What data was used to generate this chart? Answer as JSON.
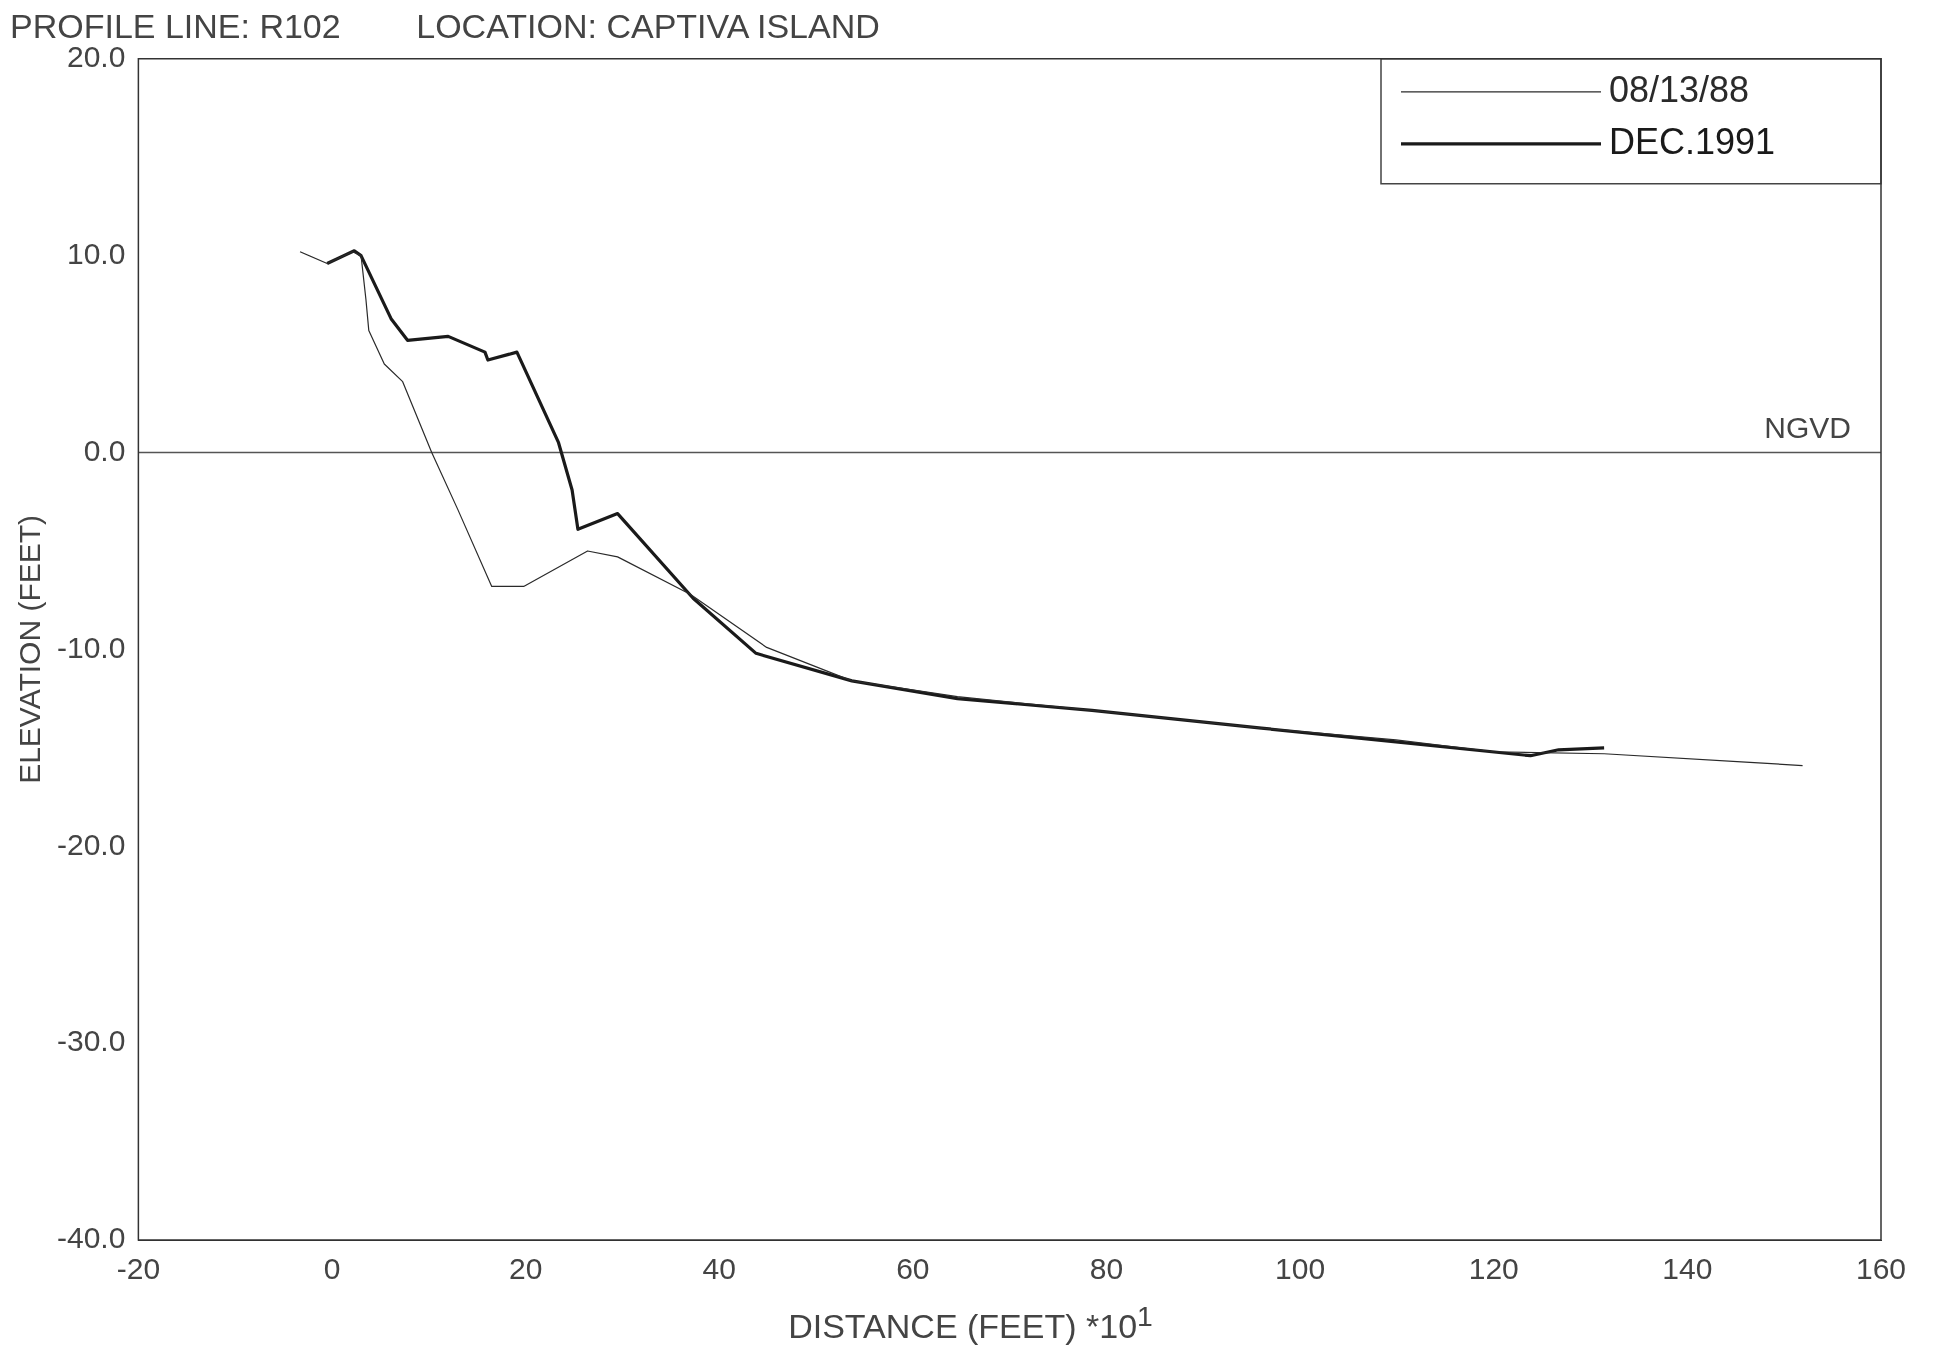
{
  "chart_data": {
    "type": "line",
    "title": "PROFILE LINE: R102        LOCATION: CAPTIVA ISLAND",
    "xlabel": "DISTANCE (FEET)   *10$^{1}$",
    "ylabel": "ELEVATION (FEET)",
    "series": [
      {
        "name": "08/13/88",
        "color": "#2a2a2a",
        "x": [
          -3.3,
          -0.5,
          2.1,
          3.0,
          3.5,
          3.8,
          5.4,
          7.3,
          10.3,
          13.0,
          16.5,
          19.8,
          26.4,
          29.5,
          37.0,
          44.9,
          53.7,
          64.6,
          78.5,
          96.0,
          109.9,
          120.0,
          131.4,
          151.9
        ],
        "values": [
          10.2,
          9.6,
          10.2,
          10.0,
          7.8,
          6.2,
          4.5,
          3.6,
          0.0,
          -2.9,
          -6.8,
          -6.8,
          -5.0,
          -5.3,
          -7.2,
          -9.9,
          -11.6,
          -12.4,
          -13.1,
          -14.0,
          -14.6,
          -15.2,
          -15.3,
          -15.9
        ]
      },
      {
        "name": "DEC.1991",
        "color": "#1a1a1a",
        "x": [
          -0.5,
          2.3,
          3.0,
          6.1,
          7.8,
          12.0,
          15.8,
          16.1,
          19.1,
          23.4,
          24.8,
          25.4,
          29.5,
          37.3,
          43.8,
          53.7,
          64.6,
          78.5,
          96.0,
          109.9,
          123.8,
          126.7,
          131.4
        ],
        "values": [
          9.6,
          10.25,
          10.0,
          6.8,
          5.7,
          5.9,
          5.1,
          4.7,
          5.1,
          0.5,
          -1.9,
          -3.9,
          -3.1,
          -7.4,
          -10.2,
          -11.6,
          -12.5,
          -13.1,
          -14.0,
          -14.7,
          -15.4,
          -15.1,
          -15.0
        ]
      }
    ],
    "xlim": [
      -20,
      160
    ],
    "xticks": [
      -20,
      0,
      20,
      40,
      60,
      80,
      100,
      120,
      140,
      160
    ],
    "ylim": [
      -40,
      20
    ],
    "yticks": [
      {
        "value": -40,
        "label": "-40.0"
      },
      {
        "value": -30,
        "label": "-30.0"
      },
      {
        "value": -20,
        "label": "-20.0"
      },
      {
        "value": -10,
        "label": "-10.0"
      },
      {
        "value": 0,
        "label": "0.0"
      },
      {
        "value": 10,
        "label": "10.0"
      },
      {
        "value": 20,
        "label": "20.0"
      }
    ],
    "ref_lines": [
      {
        "axis": "y",
        "value": 0,
        "label": "NGVD",
        "color": "#555555"
      }
    ],
    "grid": false,
    "legend": "top right",
    "marker": "none",
    "line_style": "solid"
  }
}
